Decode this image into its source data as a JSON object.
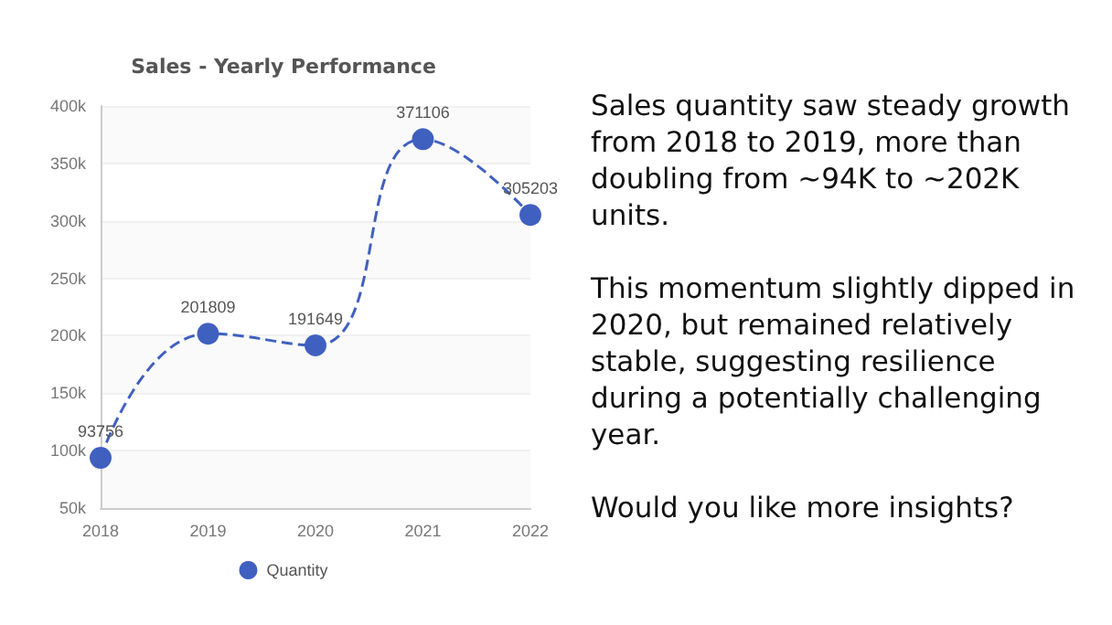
{
  "chart_data": {
    "type": "line",
    "title": "Sales - Yearly Performance",
    "categories": [
      "2018",
      "2019",
      "2020",
      "2021",
      "2022"
    ],
    "series": [
      {
        "name": "Quantity",
        "color": "#4060c0",
        "values": [
          93756,
          201809,
          191649,
          371106,
          305203
        ]
      }
    ],
    "ylim": [
      50000,
      400000
    ],
    "yticks": [
      {
        "value": 50000,
        "label": "50k"
      },
      {
        "value": 100000,
        "label": "100k"
      },
      {
        "value": 150000,
        "label": "150k"
      },
      {
        "value": 200000,
        "label": "200k"
      },
      {
        "value": 250000,
        "label": "250k"
      },
      {
        "value": 300000,
        "label": "300k"
      },
      {
        "value": 350000,
        "label": "350k"
      },
      {
        "value": 400000,
        "label": "400k"
      }
    ],
    "grid": "y",
    "legend": "bottom",
    "marker": "circle",
    "line_style": "dashed",
    "data_labels": true,
    "annotations": [
      "Sales quantity saw steady growth from 2018 to 2019, more than doubling from ~94K to ~202K units.",
      "This momentum slightly dipped in 2020, but remained relatively stable, suggesting resilience during a potentially challenging year.",
      "Would you like more insights?"
    ]
  }
}
